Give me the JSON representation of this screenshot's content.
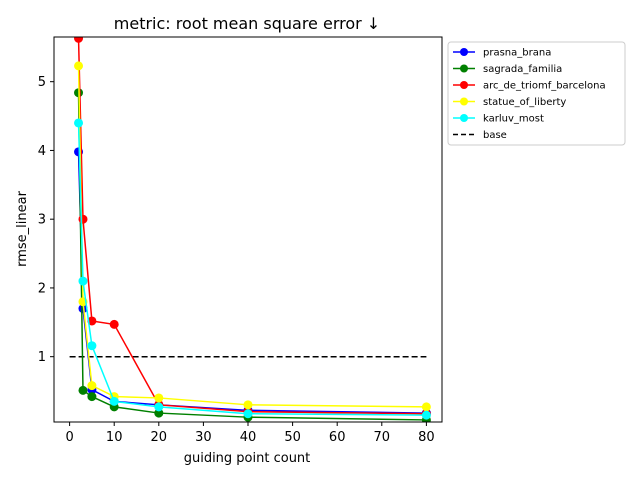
{
  "chart_data": {
    "type": "line",
    "title": "metric: root mean square error ↓",
    "xlabel": "guiding point count",
    "ylabel": "rmse_linear",
    "xlim": [
      -3.5,
      83.5
    ],
    "ylim": [
      0.05,
      5.65
    ],
    "xticks": [
      0,
      10,
      20,
      30,
      40,
      50,
      60,
      70,
      80
    ],
    "yticks": [
      1,
      2,
      3,
      4,
      5
    ],
    "grid": false,
    "legend_position": "upper-right-outside",
    "x": [
      2,
      3,
      5,
      10,
      20,
      40,
      80
    ],
    "series": [
      {
        "name": "prasna_brana",
        "color": "#0000ff",
        "values": [
          3.98,
          1.7,
          0.52,
          0.35,
          0.3,
          0.22,
          0.18
        ]
      },
      {
        "name": "sagrada_familia",
        "color": "#008000",
        "values": [
          4.84,
          0.51,
          0.42,
          0.27,
          0.18,
          0.12,
          0.08
        ]
      },
      {
        "name": "arc_de_triomf_barcelona",
        "color": "#ff0000",
        "values": [
          5.63,
          3.0,
          1.52,
          1.47,
          0.3,
          0.2,
          0.17
        ]
      },
      {
        "name": "statue_of_liberty",
        "color": "#ffff00",
        "values": [
          5.23,
          1.8,
          0.58,
          0.42,
          0.4,
          0.3,
          0.27
        ]
      },
      {
        "name": "karluv_most",
        "color": "#00ffff",
        "values": [
          4.4,
          2.1,
          1.16,
          0.35,
          0.27,
          0.17,
          0.15
        ]
      }
    ],
    "baseline": {
      "name": "base",
      "color": "#000000",
      "value": 1.0,
      "x_range": [
        0,
        80
      ]
    }
  }
}
